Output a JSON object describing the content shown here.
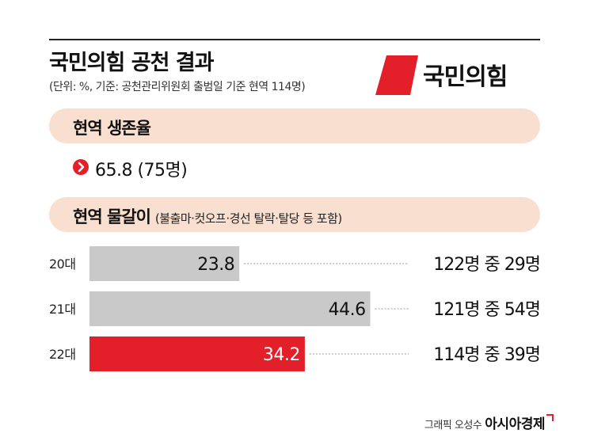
{
  "header": {
    "title": "국민의힘 공천 결과",
    "subtitle": "(단위: %, 기준: 공천관리위원회 출범일 기준 현역 114명)"
  },
  "logo": {
    "text": "국민의힘",
    "accent_color": "#e3202a"
  },
  "survival": {
    "label": "현역 생존율",
    "value_text": "65.8 (75명)"
  },
  "replacement": {
    "label": "현역 물갈이",
    "note": "(불출마·컷오프·경선 탈락·탈당 등 포함)"
  },
  "chart_data": {
    "type": "bar",
    "orientation": "horizontal",
    "categories": [
      "20대",
      "21대",
      "22대"
    ],
    "values": [
      23.8,
      44.6,
      34.2
    ],
    "value_labels": [
      "23.8",
      "44.6",
      "34.2"
    ],
    "annotations": [
      "122명 중 29명",
      "121명 중 54명",
      "114명 중 39명"
    ],
    "xlim": [
      0,
      100
    ],
    "colors": [
      "#c9c9c9",
      "#c9c9c9",
      "#e3202a"
    ],
    "grid": false
  },
  "credit": {
    "byline": "그래픽 오성수",
    "brand": "아시아경제"
  }
}
